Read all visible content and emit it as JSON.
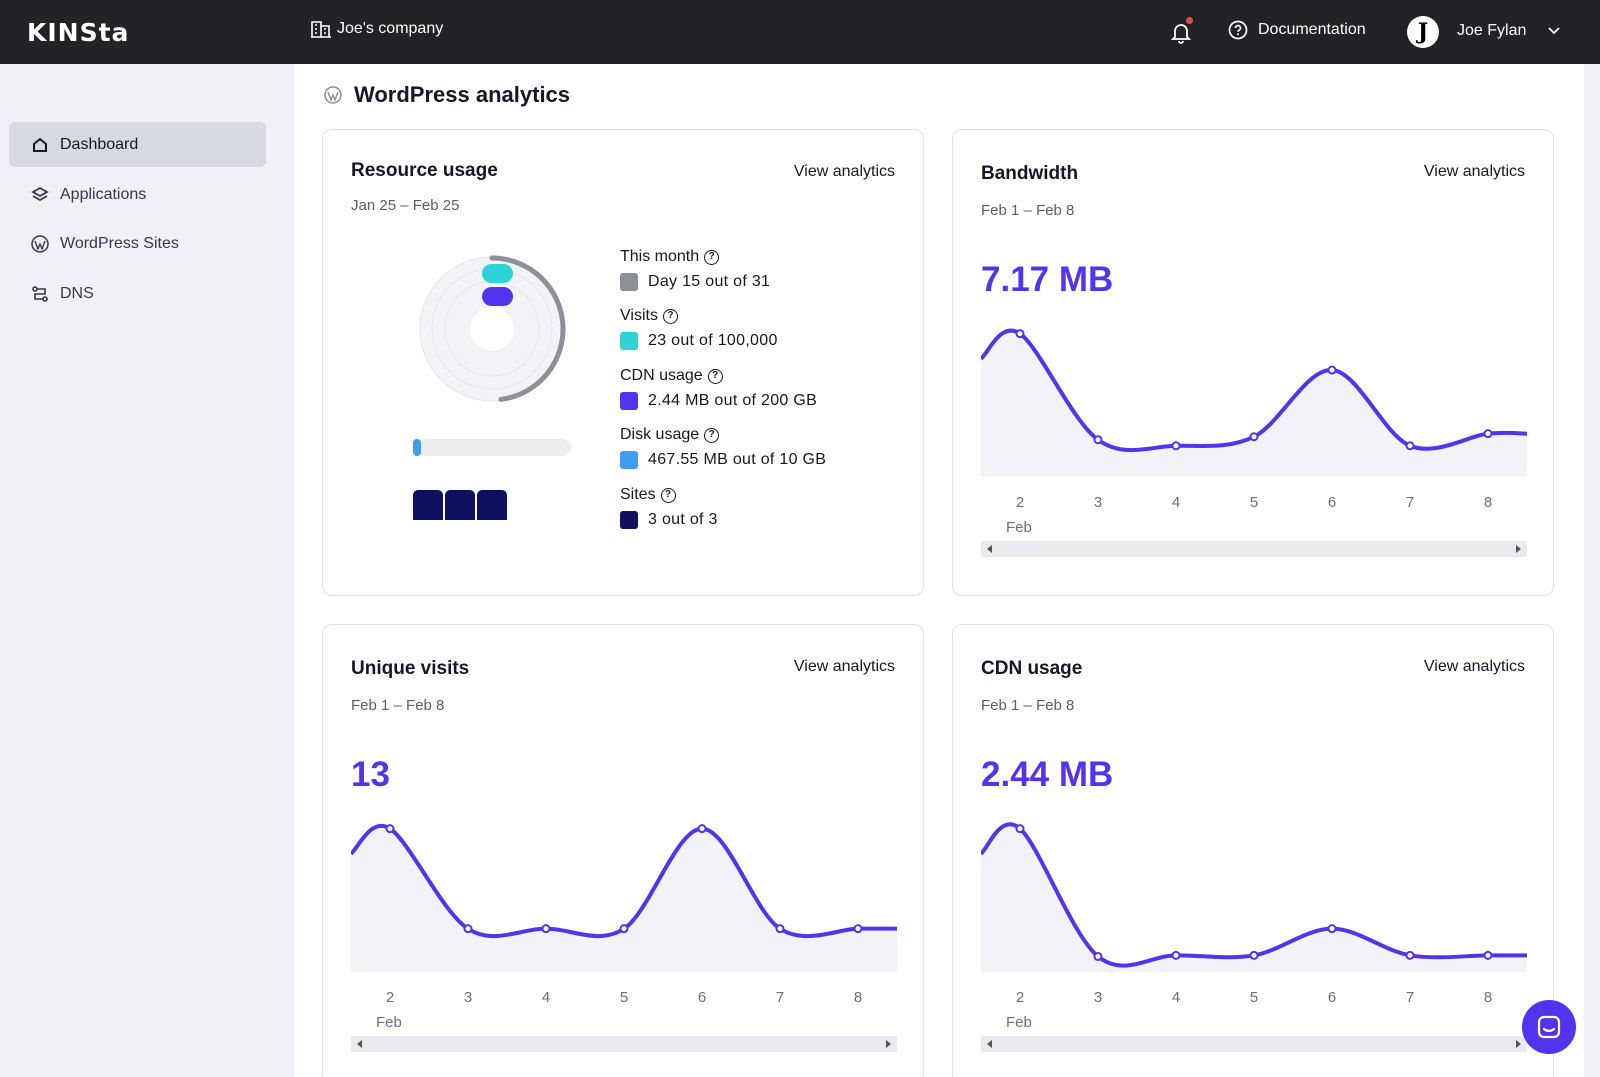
{
  "topbar": {
    "logo": "KINSta",
    "company": "Joe's company",
    "docs_label": "Documentation",
    "user_initial": "J",
    "user_name": "Joe Fylan"
  },
  "sidebar": {
    "items": [
      {
        "label": "Dashboard",
        "icon": "home-icon",
        "active": true
      },
      {
        "label": "Applications",
        "icon": "layers-icon",
        "active": false
      },
      {
        "label": "WordPress Sites",
        "icon": "wordpress-icon",
        "active": false
      },
      {
        "label": "DNS",
        "icon": "dns-icon",
        "active": false
      }
    ]
  },
  "main": {
    "title": "WordPress analytics"
  },
  "resource": {
    "title": "Resource usage",
    "link": "View analytics",
    "range": "Jan 25 – Feb 25",
    "items": [
      {
        "label": "This month",
        "value": "Day 15 out of 31",
        "color": "#8e9097"
      },
      {
        "label": "Visits",
        "value": "23 out of 100,000",
        "color": "#2ed3d7"
      },
      {
        "label": "CDN usage",
        "value": "2.44 MB out of 200 GB",
        "color": "#5333ed"
      },
      {
        "label": "Disk usage",
        "value": "467.55 MB out of 10 GB",
        "color": "#3f9cf0"
      },
      {
        "label": "Sites",
        "value": "3 out of 3",
        "color": "#0e1060"
      }
    ],
    "month_progress": 0.48,
    "disk_progress": 0.046,
    "sites_used": 3
  },
  "bandwidth": {
    "title": "Bandwidth",
    "link": "View analytics",
    "range": "Feb 1 – Feb 8",
    "value": "7.17 MB"
  },
  "visits": {
    "title": "Unique visits",
    "link": "View analytics",
    "range": "Feb 1 – Feb 8",
    "value": "13"
  },
  "cdn": {
    "title": "CDN usage",
    "link": "View analytics",
    "range": "Feb 1 – Feb 8",
    "value": "2.44 MB"
  },
  "chart_data": [
    {
      "type": "area",
      "x": [
        "2",
        "3",
        "4",
        "5",
        "6",
        "7",
        "8"
      ],
      "x_month": "Feb",
      "values": [
        2.2,
        0.45,
        0.35,
        0.5,
        1.6,
        0.35,
        0.55
      ]
    },
    {
      "type": "area",
      "x": [
        "2",
        "3",
        "4",
        "5",
        "6",
        "7",
        "8"
      ],
      "x_month": "Feb",
      "values": [
        4,
        1,
        1,
        1,
        4,
        1,
        1
      ]
    },
    {
      "type": "area",
      "x": [
        "2",
        "3",
        "4",
        "5",
        "6",
        "7",
        "8"
      ],
      "x_month": "Feb",
      "values": [
        1.2,
        0.05,
        0.06,
        0.06,
        0.3,
        0.06,
        0.06
      ]
    }
  ]
}
